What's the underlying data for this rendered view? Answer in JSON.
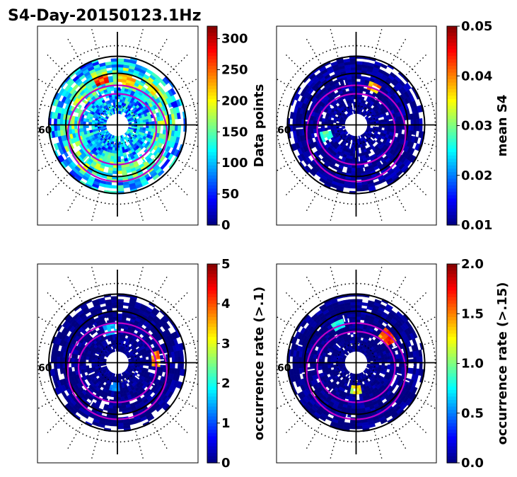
{
  "figure": {
    "title": "S4-Day-20150123.1Hz"
  },
  "chart_data": [
    {
      "type": "heatmap",
      "projection": "polar",
      "colormap": "jet",
      "colorbar_label": "Data points",
      "clim": [
        0,
        320
      ],
      "colorbar_ticks": [
        "0",
        "50",
        "100",
        "150",
        "200",
        "250",
        "300"
      ],
      "colorbar_tick_values": [
        0,
        50,
        100,
        150,
        200,
        250,
        300
      ],
      "polar_label": "60",
      "dominant_level": 0.3,
      "hotspots": [
        {
          "angle_deg": 80,
          "r_frac": 0.67,
          "level": 0.75
        },
        {
          "angle_deg": 110,
          "r_frac": 0.68,
          "level": 0.95
        },
        {
          "angle_deg": 45,
          "r_frac": 0.72,
          "level": 0.7
        },
        {
          "angle_deg": 150,
          "r_frac": 0.62,
          "level": 0.55
        },
        {
          "angle_deg": 200,
          "r_frac": 0.55,
          "level": 0.45
        },
        {
          "angle_deg": 260,
          "r_frac": 0.5,
          "level": 0.5
        }
      ]
    },
    {
      "type": "heatmap",
      "projection": "polar",
      "colormap": "jet",
      "colorbar_label": "mean S4",
      "clim": [
        0.01,
        0.05
      ],
      "colorbar_ticks": [
        "0.01",
        "0.02",
        "0.03",
        "0.04",
        "0.05"
      ],
      "colorbar_tick_values": [
        0.01,
        0.02,
        0.03,
        0.04,
        0.05
      ],
      "polar_label": "60",
      "dominant_level": 0.02,
      "hotspots": [
        {
          "angle_deg": 65,
          "r_frac": 0.6,
          "level": 0.85
        },
        {
          "angle_deg": 200,
          "r_frac": 0.45,
          "level": 0.5
        }
      ]
    },
    {
      "type": "heatmap",
      "projection": "polar",
      "colormap": "jet",
      "colorbar_label": "occurrence rate (>.1)",
      "clim": [
        0,
        5
      ],
      "colorbar_ticks": [
        "0",
        "1",
        "2",
        "3",
        "4",
        "5"
      ],
      "colorbar_tick_values": [
        0,
        1,
        2,
        3,
        4,
        5
      ],
      "polar_label": "60",
      "dominant_level": 0.0,
      "hotspots": [
        {
          "angle_deg": 5,
          "r_frac": 0.55,
          "level": 0.85
        },
        {
          "angle_deg": 265,
          "r_frac": 0.35,
          "level": 0.3
        },
        {
          "angle_deg": 100,
          "r_frac": 0.5,
          "level": 0.35
        }
      ]
    },
    {
      "type": "heatmap",
      "projection": "polar",
      "colormap": "jet",
      "colorbar_label": "occurrence rate (>.15)",
      "clim": [
        0.0,
        2.0
      ],
      "colorbar_ticks": [
        "0.0",
        "0.5",
        "1.0",
        "1.5",
        "2.0"
      ],
      "colorbar_tick_values": [
        0.0,
        0.5,
        1.0,
        1.5,
        2.0
      ],
      "polar_label": "60",
      "dominant_level": 0.0,
      "hotspots": [
        {
          "angle_deg": 115,
          "r_frac": 0.6,
          "level": 0.45
        },
        {
          "angle_deg": 270,
          "r_frac": 0.38,
          "level": 0.7
        },
        {
          "angle_deg": 40,
          "r_frac": 0.58,
          "level": 0.9
        }
      ]
    }
  ]
}
